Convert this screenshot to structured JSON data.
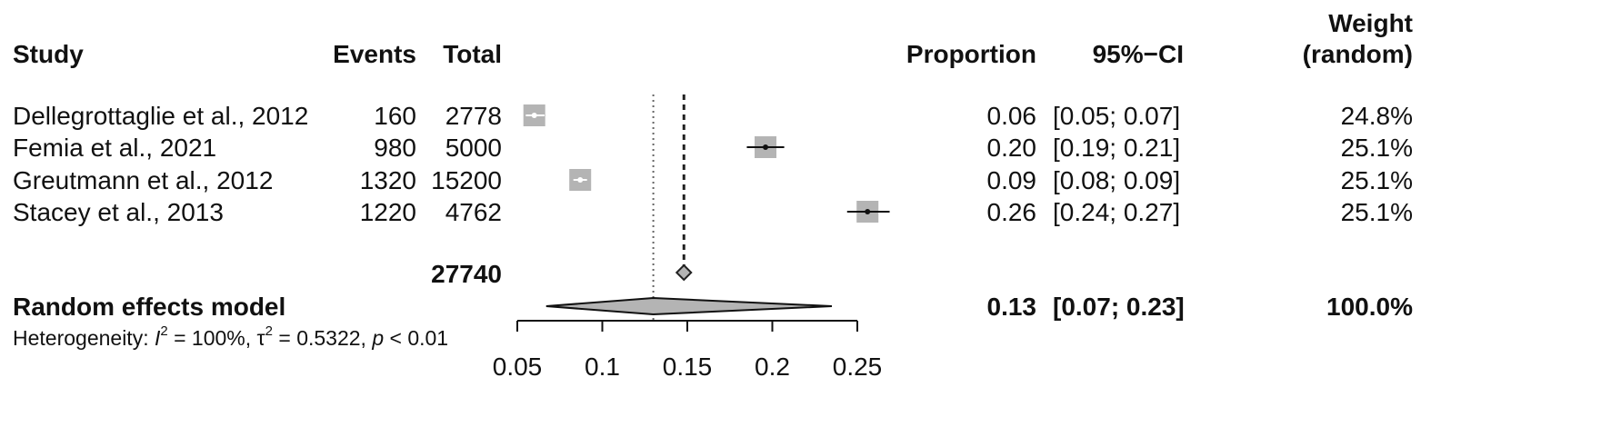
{
  "headers": {
    "study": "Study",
    "events": "Events",
    "total": "Total",
    "proportion": "Proportion",
    "ci": "95%−CI",
    "weight_line1": "Weight",
    "weight_line2": "(random)"
  },
  "studies": [
    {
      "study": "Dellegrottaglie et al., 2012",
      "events": "160",
      "total": "2778",
      "proportion": "0.06",
      "ci": "[0.05; 0.07]",
      "weight": "24.8%"
    },
    {
      "study": "Femia et al., 2021",
      "events": "980",
      "total": "5000",
      "proportion": "0.20",
      "ci": "[0.19; 0.21]",
      "weight": "25.1%"
    },
    {
      "study": "Greutmann et al., 2012",
      "events": "1320",
      "total": "15200",
      "proportion": "0.09",
      "ci": "[0.08; 0.09]",
      "weight": "25.1%"
    },
    {
      "study": "Stacey et al., 2013",
      "events": "1220",
      "total": "4762",
      "proportion": "0.26",
      "ci": "[0.24; 0.27]",
      "weight": "25.1%"
    }
  ],
  "pooled_total": "27740",
  "summary": {
    "label": "Random effects model",
    "proportion": "0.13",
    "ci": "[0.07; 0.23]",
    "weight": "100.0%"
  },
  "heterogeneity": {
    "prefix": "Heterogeneity: ",
    "i2_symbol": "I",
    "i2_value": " = 100%, ",
    "tau_symbol": "τ",
    "tau_value": " = 0.5322, ",
    "p_symbol": "p",
    "p_value": " < 0.01"
  },
  "chart_data": {
    "type": "forest",
    "x_ticks": [
      0.05,
      0.1,
      0.15,
      0.2,
      0.25
    ],
    "x_tick_labels": [
      "0.05",
      "0.1",
      "0.15",
      "0.2",
      "0.25"
    ],
    "xlim": [
      0.05,
      0.25
    ],
    "studies": [
      {
        "estimate": 0.06,
        "lower": 0.055,
        "upper": 0.066,
        "weight": 24.8
      },
      {
        "estimate": 0.196,
        "lower": 0.185,
        "upper": 0.207,
        "weight": 25.1
      },
      {
        "estimate": 0.087,
        "lower": 0.083,
        "upper": 0.091,
        "weight": 25.1
      },
      {
        "estimate": 0.256,
        "lower": 0.244,
        "upper": 0.269,
        "weight": 25.1
      }
    ],
    "random_effects": {
      "estimate": 0.13,
      "lower": 0.067,
      "upper": 0.235
    },
    "common_effect_marker": 0.148,
    "random_effects_line": 0.13,
    "common_effect_line": 0.148
  }
}
